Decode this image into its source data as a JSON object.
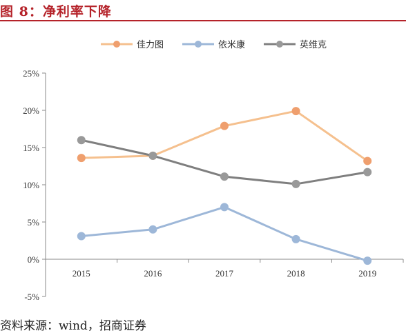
{
  "figure": {
    "title": "图 8：净利率下降",
    "source": "资料来源：wind，招商证券"
  },
  "chart_data": {
    "type": "line",
    "title": "",
    "xlabel": "",
    "ylabel": "",
    "categories": [
      "2015",
      "2016",
      "2017",
      "2018",
      "2019"
    ],
    "ylim": [
      -5,
      25
    ],
    "y_ticks": [
      -5,
      0,
      5,
      10,
      15,
      20,
      25
    ],
    "y_tick_labels": [
      "-5%",
      "0%",
      "5%",
      "10%",
      "15%",
      "20%",
      "25%"
    ],
    "legend_position": "top",
    "grid": false,
    "series": [
      {
        "name": "佳力图",
        "values": [
          13.6,
          13.9,
          17.9,
          19.9,
          13.2
        ],
        "color": "#f5c08e",
        "marker_color": "#ef9f6e"
      },
      {
        "name": "依米康",
        "values": [
          3.1,
          4.0,
          7.0,
          2.7,
          -0.2
        ],
        "color": "#9db7d8",
        "marker_color": "#9db7d8"
      },
      {
        "name": "英维克",
        "values": [
          16.0,
          13.9,
          11.1,
          10.1,
          11.7
        ],
        "color": "#7f7f7f",
        "marker_color": "#999999"
      }
    ]
  }
}
